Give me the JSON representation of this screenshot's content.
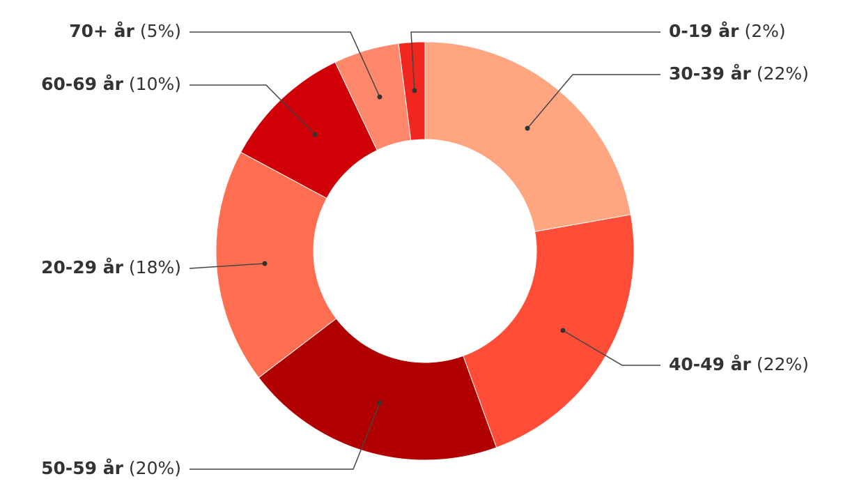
{
  "chart_data": {
    "type": "donut",
    "categories": [
      "30-39 år",
      "40-49 år",
      "50-59 år",
      "20-29 år",
      "60-69 år",
      "70+ år",
      "0-19 år"
    ],
    "values": [
      22,
      22,
      20,
      18,
      10,
      5,
      2
    ],
    "value_labels": [
      "(22%)",
      "(22%)",
      "(20%)",
      "(18%)",
      "(10%)",
      "(5%)",
      "(2%)"
    ],
    "colors": [
      "#ffa680",
      "#ff4d38",
      "#b00000",
      "#ff6e50",
      "#d10007",
      "#ff876b",
      "#f0261f"
    ]
  }
}
